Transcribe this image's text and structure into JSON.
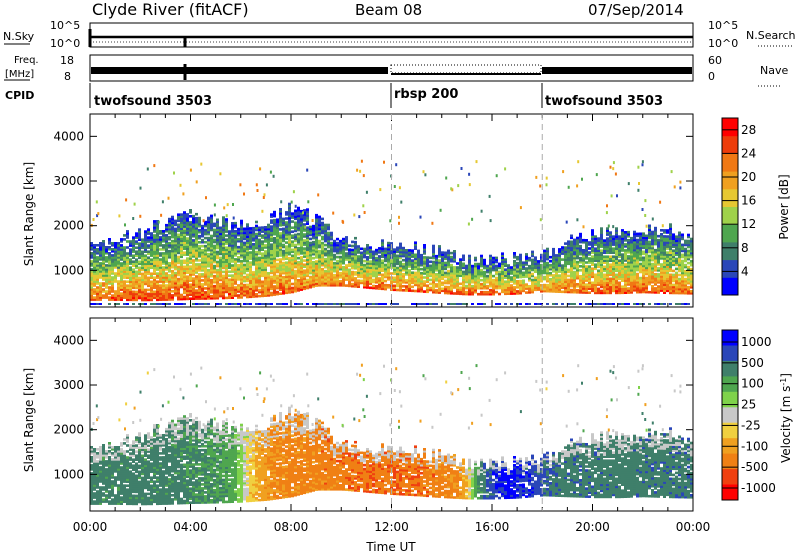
{
  "header": {
    "title": "Clyde River (fitACF)",
    "beam": "Beam 08",
    "date": "07/Sep/2014"
  },
  "top_labels": {
    "nsky": "N.Sky",
    "freq_top": "Freq.",
    "freq_unit": "[MHz]",
    "cpid": "CPID",
    "nsearch": "N.Search",
    "nave": "Nave",
    "nsky_ticks": [
      "10^5",
      "10^0"
    ],
    "nsearch_ticks": [
      "10^5",
      "10^0"
    ],
    "freq_ticks": [
      "18",
      "8"
    ],
    "nave_ticks": [
      "60",
      "0"
    ]
  },
  "cpid_segments": [
    {
      "label": "twofsound 3503",
      "start_hour": 0
    },
    {
      "label": "rbsp 200",
      "start_hour": 12
    },
    {
      "label": "twofsound 3503",
      "start_hour": 18
    }
  ],
  "colors": {
    "power": [
      "#0000ff",
      "#2a46b8",
      "#3f7f6a",
      "#4fa64f",
      "#9fd24a",
      "#e6c832",
      "#f0a020",
      "#f07814",
      "#ee3c0a",
      "#ff0000"
    ],
    "velocity": [
      "#ff0000",
      "#f04010",
      "#f08014",
      "#f0a020",
      "#f0d040",
      "#c8c8c8",
      "#7fd24a",
      "#4fa64f",
      "#3f7f6a",
      "#2a46b8",
      "#0000ff"
    ]
  },
  "chart_data": [
    {
      "type": "heatmap",
      "title": "",
      "xlabel": "Time UT",
      "ylabel": "Slant Range [km]",
      "xlim": [
        0,
        24
      ],
      "ylim": [
        180,
        4500
      ],
      "x_ticks": [
        "00:00",
        "04:00",
        "08:00",
        "12:00",
        "16:00",
        "20:00",
        "00:00"
      ],
      "y_ticks": [
        1000,
        2000,
        3000,
        4000
      ],
      "colorbar": {
        "label": "Power [dB]",
        "ticks": [
          4,
          8,
          12,
          16,
          20,
          24,
          28
        ],
        "range": [
          0,
          30
        ]
      },
      "profile": [
        {
          "hour": 0.2,
          "low": 330,
          "high": 1550,
          "peak": 24
        },
        {
          "hour": 1.0,
          "low": 330,
          "high": 1700,
          "peak": 26
        },
        {
          "hour": 2.0,
          "low": 320,
          "high": 1850,
          "peak": 26
        },
        {
          "hour": 3.0,
          "low": 330,
          "high": 2100,
          "peak": 26
        },
        {
          "hour": 4.0,
          "low": 350,
          "high": 2300,
          "peak": 27
        },
        {
          "hour": 5.0,
          "low": 360,
          "high": 2100,
          "peak": 26
        },
        {
          "hour": 6.0,
          "low": 380,
          "high": 2000,
          "peak": 25
        },
        {
          "hour": 7.0,
          "low": 420,
          "high": 2100,
          "peak": 25
        },
        {
          "hour": 8.0,
          "low": 500,
          "high": 2400,
          "peak": 24
        },
        {
          "hour": 9.0,
          "low": 650,
          "high": 2100,
          "peak": 22
        },
        {
          "hour": 10.0,
          "low": 650,
          "high": 1650,
          "peak": 24
        },
        {
          "hour": 11.0,
          "low": 600,
          "high": 1550,
          "peak": 25
        },
        {
          "hour": 12.0,
          "low": 550,
          "high": 1500,
          "peak": 25
        },
        {
          "hour": 13.0,
          "low": 520,
          "high": 1450,
          "peak": 24
        },
        {
          "hour": 14.0,
          "low": 480,
          "high": 1400,
          "peak": 24
        },
        {
          "hour": 15.0,
          "low": 450,
          "high": 1250,
          "peak": 25
        },
        {
          "hour": 16.0,
          "low": 450,
          "high": 1200,
          "peak": 25
        },
        {
          "hour": 17.0,
          "low": 470,
          "high": 1300,
          "peak": 25
        },
        {
          "hour": 18.0,
          "low": 520,
          "high": 1350,
          "peak": 22
        },
        {
          "hour": 19.0,
          "low": 500,
          "high": 1600,
          "peak": 24
        },
        {
          "hour": 20.0,
          "low": 480,
          "high": 1800,
          "peak": 25
        },
        {
          "hour": 21.0,
          "low": 480,
          "high": 1850,
          "peak": 25
        },
        {
          "hour": 22.0,
          "low": 500,
          "high": 1850,
          "peak": 25
        },
        {
          "hour": 23.0,
          "low": 480,
          "high": 1900,
          "peak": 25
        },
        {
          "hour": 23.9,
          "low": 470,
          "high": 1700,
          "peak": 24
        }
      ]
    },
    {
      "type": "heatmap",
      "title": "",
      "xlabel": "Time UT",
      "ylabel": "Slant Range [km]",
      "xlim": [
        0,
        24
      ],
      "ylim": [
        180,
        4500
      ],
      "x_ticks": [
        "00:00",
        "04:00",
        "08:00",
        "12:00",
        "16:00",
        "20:00",
        "00:00"
      ],
      "y_ticks": [
        1000,
        2000,
        3000,
        4000
      ],
      "colorbar": {
        "label": "Velocity [m s^-1]",
        "ticks": [
          "1000",
          "500",
          "100",
          "25",
          "-25",
          "-100",
          "-500",
          "-1000"
        ]
      },
      "dominant_velocity": [
        {
          "hour": 0.2,
          "velocity": 150
        },
        {
          "hour": 3.0,
          "velocity": 150
        },
        {
          "hour": 5.5,
          "velocity": 80
        },
        {
          "hour": 7.5,
          "velocity": -300
        },
        {
          "hour": 10.0,
          "velocity": -400
        },
        {
          "hour": 12.5,
          "velocity": -450
        },
        {
          "hour": 14.5,
          "velocity": -300
        },
        {
          "hour": 16.5,
          "velocity": 600
        },
        {
          "hour": 18.5,
          "velocity": 200
        },
        {
          "hour": 21.0,
          "velocity": 180
        },
        {
          "hour": 23.5,
          "velocity": 200
        }
      ]
    }
  ]
}
